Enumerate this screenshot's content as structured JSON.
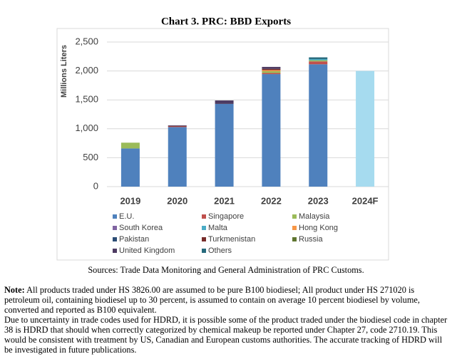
{
  "chart_data": {
    "type": "stacked-bar",
    "title": "Chart 3. PRC: BBD Exports",
    "y_label": "Millions Liters",
    "categories": [
      "2019",
      "2020",
      "2021",
      "2022",
      "2023",
      "2024F"
    ],
    "ylim": [
      0,
      2500
    ],
    "yticks": [
      0,
      500,
      {
        "value": 1000,
        "label": "1,000"
      },
      {
        "value": 1500,
        "label": "1,500"
      },
      {
        "value": 2000,
        "label": "2,000"
      },
      {
        "value": 2500,
        "label": "2,500"
      }
    ],
    "grid": true,
    "series": [
      {
        "name": "E.U.",
        "color": "#4f81bd",
        "colors": [
          "#4f81bd",
          "#4f81bd",
          "#4f81bd",
          "#4f81bd",
          "#4f81bd",
          "#a6dbef"
        ],
        "values": [
          660,
          1030,
          1430,
          1945,
          2115,
          2000
        ]
      },
      {
        "name": "Singapore",
        "color": "#c0504d",
        "values": [
          null,
          10,
          null,
          20,
          50,
          null
        ]
      },
      {
        "name": "Malaysia",
        "color": "#9bbb59",
        "values": [
          100,
          null,
          null,
          30,
          20,
          null
        ]
      },
      {
        "name": "South Korea",
        "color": "#8064a2",
        "values": [
          null,
          null,
          null,
          null,
          null,
          null
        ]
      },
      {
        "name": "Malta",
        "color": "#4bacc6",
        "values": [
          null,
          null,
          null,
          null,
          20,
          null
        ]
      },
      {
        "name": "Hong Kong",
        "color": "#f79646",
        "values": [
          null,
          null,
          null,
          20,
          null,
          null
        ]
      },
      {
        "name": "Pakistan",
        "color": "#2c4d75",
        "values": [
          null,
          null,
          null,
          null,
          null,
          null
        ]
      },
      {
        "name": "Turkmenistan",
        "color": "#772c2a",
        "values": [
          null,
          10,
          null,
          20,
          null,
          null
        ]
      },
      {
        "name": "Russia",
        "color": "#5f7530",
        "values": [
          null,
          null,
          null,
          null,
          null,
          null
        ]
      },
      {
        "name": "United Kingdom",
        "color": "#4d3b62",
        "values": [
          null,
          10,
          60,
          35,
          null,
          null
        ]
      },
      {
        "name": "Others",
        "color": "#276a7c",
        "values": [
          null,
          null,
          null,
          null,
          30,
          null
        ]
      }
    ],
    "source": "Sources: Trade Data Monitoring and General Administration of PRC Customs."
  },
  "notes": {
    "label": "Note:",
    "paragraphs": [
      "All products traded under HS 3826.00 are assumed to be pure B100 biodiesel; All product under HS 271020 is petroleum oil, containing biodiesel up to 30 percent, is assumed to contain on average 10 percent biodiesel by volume, converted and reported as B100 equivalent.",
      "Due to uncertainty in trade codes used for HDRD, it is possible some of the product traded under the biodiesel code in chapter 38 is HDRD that should when correctly categorized by chemical makeup be reported under Chapter 27, code 2710.19. This would be consistent with treatment by US, Canadian and European customs authorities. The accurate tracking of HDRD will be investigated in future publications."
    ]
  }
}
